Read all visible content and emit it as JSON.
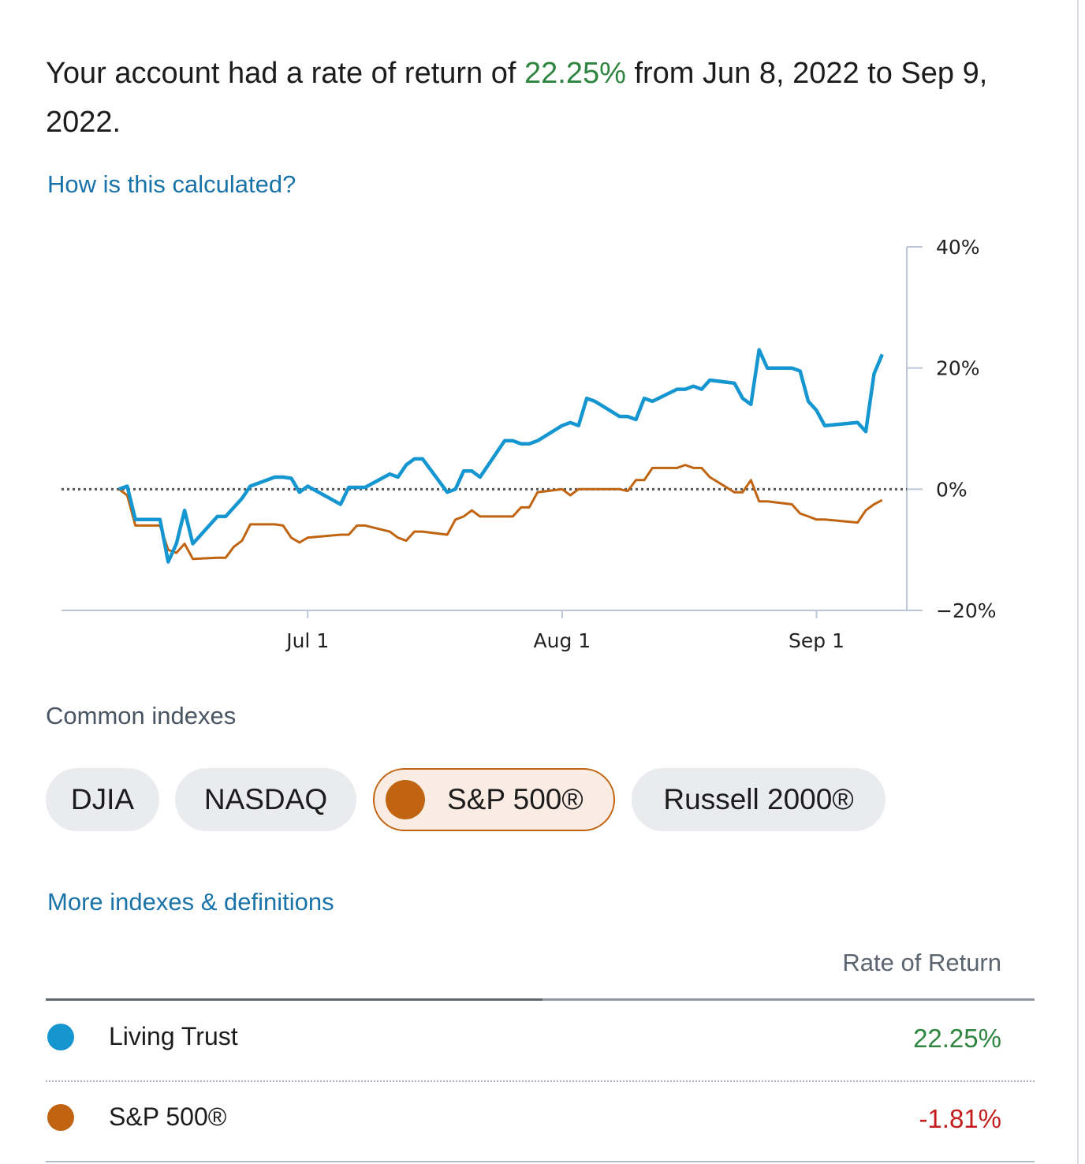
{
  "summary": {
    "prefix": "Your account had a rate of return of ",
    "rate": "22.25%",
    "suffix": " from Jun 8, 2022 to Sep 9, 2022."
  },
  "links": {
    "how_calculated": "How is this calculated?",
    "more_indexes": "More indexes & definitions"
  },
  "chart_data": {
    "type": "line",
    "x_tick_labels": [
      "Jul 1",
      "Aug 1",
      "Sep 1"
    ],
    "y_tick_labels": [
      "40%",
      "20%",
      "0%",
      "−20%"
    ],
    "ylim": [
      -20,
      40
    ],
    "reference_line": 0,
    "series": [
      {
        "name": "Living Trust",
        "color": "#1596d0",
        "x": [
          "2022-06-08",
          "2022-06-09",
          "2022-06-10",
          "2022-06-13",
          "2022-06-14",
          "2022-06-15",
          "2022-06-16",
          "2022-06-17",
          "2022-06-20",
          "2022-06-21",
          "2022-06-22",
          "2022-06-23",
          "2022-06-24",
          "2022-06-27",
          "2022-06-28",
          "2022-06-29",
          "2022-06-30",
          "2022-07-01",
          "2022-07-05",
          "2022-07-06",
          "2022-07-07",
          "2022-07-08",
          "2022-07-11",
          "2022-07-12",
          "2022-07-13",
          "2022-07-14",
          "2022-07-15",
          "2022-07-18",
          "2022-07-19",
          "2022-07-20",
          "2022-07-21",
          "2022-07-22",
          "2022-07-25",
          "2022-07-26",
          "2022-07-27",
          "2022-07-28",
          "2022-07-29",
          "2022-08-01",
          "2022-08-02",
          "2022-08-03",
          "2022-08-04",
          "2022-08-05",
          "2022-08-08",
          "2022-08-09",
          "2022-08-10",
          "2022-08-11",
          "2022-08-12",
          "2022-08-15",
          "2022-08-16",
          "2022-08-17",
          "2022-08-18",
          "2022-08-19",
          "2022-08-22",
          "2022-08-23",
          "2022-08-24",
          "2022-08-25",
          "2022-08-26",
          "2022-08-29",
          "2022-08-30",
          "2022-08-31",
          "2022-09-01",
          "2022-09-02",
          "2022-09-06",
          "2022-09-07",
          "2022-09-08",
          "2022-09-09"
        ],
        "values": [
          0.0,
          0.5,
          -5.0,
          -5.0,
          -12.0,
          -9.0,
          -3.5,
          -9.0,
          -4.5,
          -4.5,
          -3.0,
          -1.5,
          0.5,
          2.0,
          2.0,
          1.8,
          -0.5,
          0.5,
          -2.5,
          0.3,
          0.3,
          0.3,
          2.5,
          2.0,
          4.0,
          5.0,
          5.0,
          -0.5,
          0.0,
          3.0,
          3.0,
          2.0,
          8.0,
          8.0,
          7.5,
          7.5,
          8.0,
          10.5,
          11.0,
          10.5,
          15.0,
          14.5,
          12.0,
          12.0,
          11.5,
          15.0,
          14.5,
          16.5,
          16.5,
          17.0,
          16.5,
          18.0,
          17.5,
          15.0,
          14.0,
          23.0,
          20.0,
          20.0,
          19.5,
          14.5,
          13.0,
          10.5,
          11.0,
          9.5,
          19.0,
          22.25
        ]
      },
      {
        "name": "S&P 500®",
        "color": "#c06411",
        "x": [
          "2022-06-08",
          "2022-06-09",
          "2022-06-10",
          "2022-06-13",
          "2022-06-14",
          "2022-06-15",
          "2022-06-16",
          "2022-06-17",
          "2022-06-20",
          "2022-06-21",
          "2022-06-22",
          "2022-06-23",
          "2022-06-24",
          "2022-06-27",
          "2022-06-28",
          "2022-06-29",
          "2022-06-30",
          "2022-07-01",
          "2022-07-05",
          "2022-07-06",
          "2022-07-07",
          "2022-07-08",
          "2022-07-11",
          "2022-07-12",
          "2022-07-13",
          "2022-07-14",
          "2022-07-15",
          "2022-07-18",
          "2022-07-19",
          "2022-07-20",
          "2022-07-21",
          "2022-07-22",
          "2022-07-25",
          "2022-07-26",
          "2022-07-27",
          "2022-07-28",
          "2022-07-29",
          "2022-08-01",
          "2022-08-02",
          "2022-08-03",
          "2022-08-04",
          "2022-08-05",
          "2022-08-08",
          "2022-08-09",
          "2022-08-10",
          "2022-08-11",
          "2022-08-12",
          "2022-08-15",
          "2022-08-16",
          "2022-08-17",
          "2022-08-18",
          "2022-08-19",
          "2022-08-22",
          "2022-08-23",
          "2022-08-24",
          "2022-08-25",
          "2022-08-26",
          "2022-08-29",
          "2022-08-30",
          "2022-08-31",
          "2022-09-01",
          "2022-09-02",
          "2022-09-06",
          "2022-09-07",
          "2022-09-08",
          "2022-09-09"
        ],
        "values": [
          0.0,
          -1.0,
          -6.0,
          -6.0,
          -10.0,
          -10.5,
          -9.0,
          -11.5,
          -11.3,
          -11.3,
          -9.5,
          -8.5,
          -5.8,
          -5.8,
          -6.0,
          -8.0,
          -8.8,
          -8.0,
          -7.5,
          -7.5,
          -6.0,
          -6.0,
          -7.0,
          -8.0,
          -8.5,
          -7.0,
          -7.0,
          -7.5,
          -5.0,
          -4.5,
          -3.5,
          -4.5,
          -4.5,
          -4.5,
          -3.0,
          -3.0,
          -0.5,
          0.0,
          -1.0,
          0.0,
          0.0,
          0.0,
          0.0,
          -0.3,
          1.5,
          1.5,
          3.5,
          3.5,
          4.0,
          3.5,
          3.5,
          2.0,
          -0.5,
          -0.5,
          1.5,
          -2.0,
          -2.0,
          -2.5,
          -4.0,
          -4.5,
          -5.0,
          -5.0,
          -5.5,
          -3.5,
          -2.5,
          -1.81
        ]
      }
    ]
  },
  "indexes": {
    "label": "Common indexes",
    "chips": [
      {
        "label": "DJIA",
        "active": false
      },
      {
        "label": "NASDAQ",
        "active": false
      },
      {
        "label": "S&P 500®",
        "active": true
      },
      {
        "label": "Russell 2000®",
        "active": false
      }
    ]
  },
  "table": {
    "header": "Rate of Return",
    "rows": [
      {
        "name": "Living Trust",
        "color": "#1596d0",
        "value": "22.25%",
        "value_color": "#2e8540"
      },
      {
        "name": "S&P 500®",
        "color": "#c06411",
        "value": "-1.81%",
        "value_color": "#c41d1d"
      }
    ]
  }
}
